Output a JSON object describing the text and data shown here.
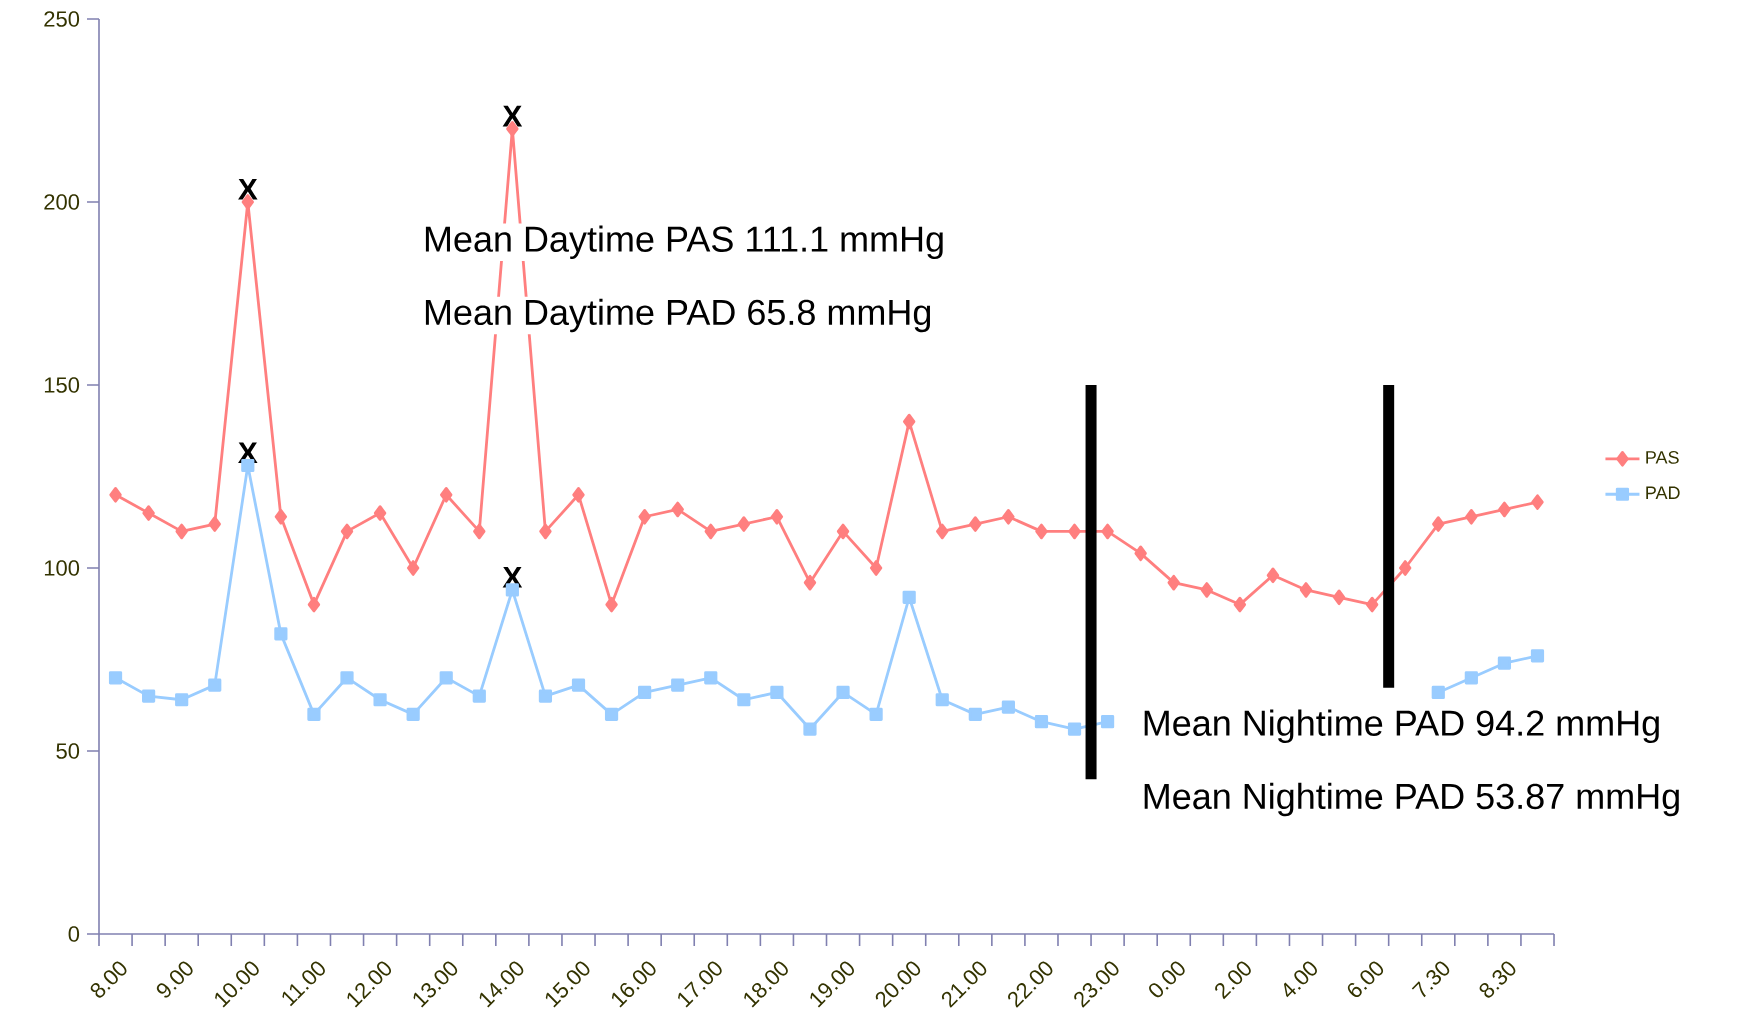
{
  "chart_data": {
    "type": "line",
    "categories": [
      "8.00",
      null,
      "9.00",
      null,
      "10.00",
      null,
      "11.00",
      null,
      "12.00",
      null,
      "13.00",
      null,
      "14.00",
      null,
      "15.00",
      null,
      "16.00",
      null,
      "17.00",
      null,
      "18.00",
      null,
      "19.00",
      null,
      "20.00",
      null,
      "21.00",
      null,
      "22.00",
      null,
      "23.00",
      null,
      "0.00",
      null,
      "2.00",
      null,
      "4.00",
      null,
      "6.00",
      null,
      "7.30",
      null,
      "8.30",
      null
    ],
    "series": [
      {
        "name": "PAS",
        "color": "#ff7f7f",
        "marker": "diamond",
        "values": [
          120,
          115,
          110,
          112,
          200,
          114,
          90,
          110,
          115,
          100,
          120,
          110,
          220,
          110,
          120,
          90,
          114,
          116,
          110,
          112,
          114,
          96,
          110,
          100,
          140,
          110,
          112,
          114,
          110,
          110,
          110,
          104,
          96,
          94,
          90,
          98,
          94,
          92,
          90,
          100,
          112,
          114,
          116,
          118
        ]
      },
      {
        "name": "PAD",
        "color": "#99ccff",
        "marker": "square",
        "values": [
          70,
          65,
          64,
          68,
          128,
          82,
          60,
          70,
          64,
          60,
          70,
          65,
          94,
          65,
          68,
          60,
          66,
          68,
          70,
          64,
          66,
          56,
          66,
          60,
          92,
          64,
          60,
          62,
          58,
          56,
          58,
          null,
          null,
          null,
          null,
          null,
          null,
          null,
          null,
          null,
          66,
          70,
          74,
          76
        ]
      }
    ],
    "ylim": [
      0,
      250
    ],
    "yticks": [
      0,
      50,
      100,
      150,
      200,
      250
    ],
    "legend": "right",
    "annotations": [
      {
        "text": "X",
        "x": "10.00",
        "y": 200
      },
      {
        "text": "X",
        "x": "10.00",
        "y": 128
      },
      {
        "text": "X",
        "x": "14.00",
        "y": 220
      },
      {
        "text": "X",
        "x": "14.00",
        "y": 94
      },
      "Mean Daytime PAS 111.1 mmHg",
      "Mean Daytime PAD 65.8 mmHg",
      "Mean Nightime PAD 94.2 mmHg",
      "Mean Nightime PAD 53.87 mmHg"
    ]
  }
}
